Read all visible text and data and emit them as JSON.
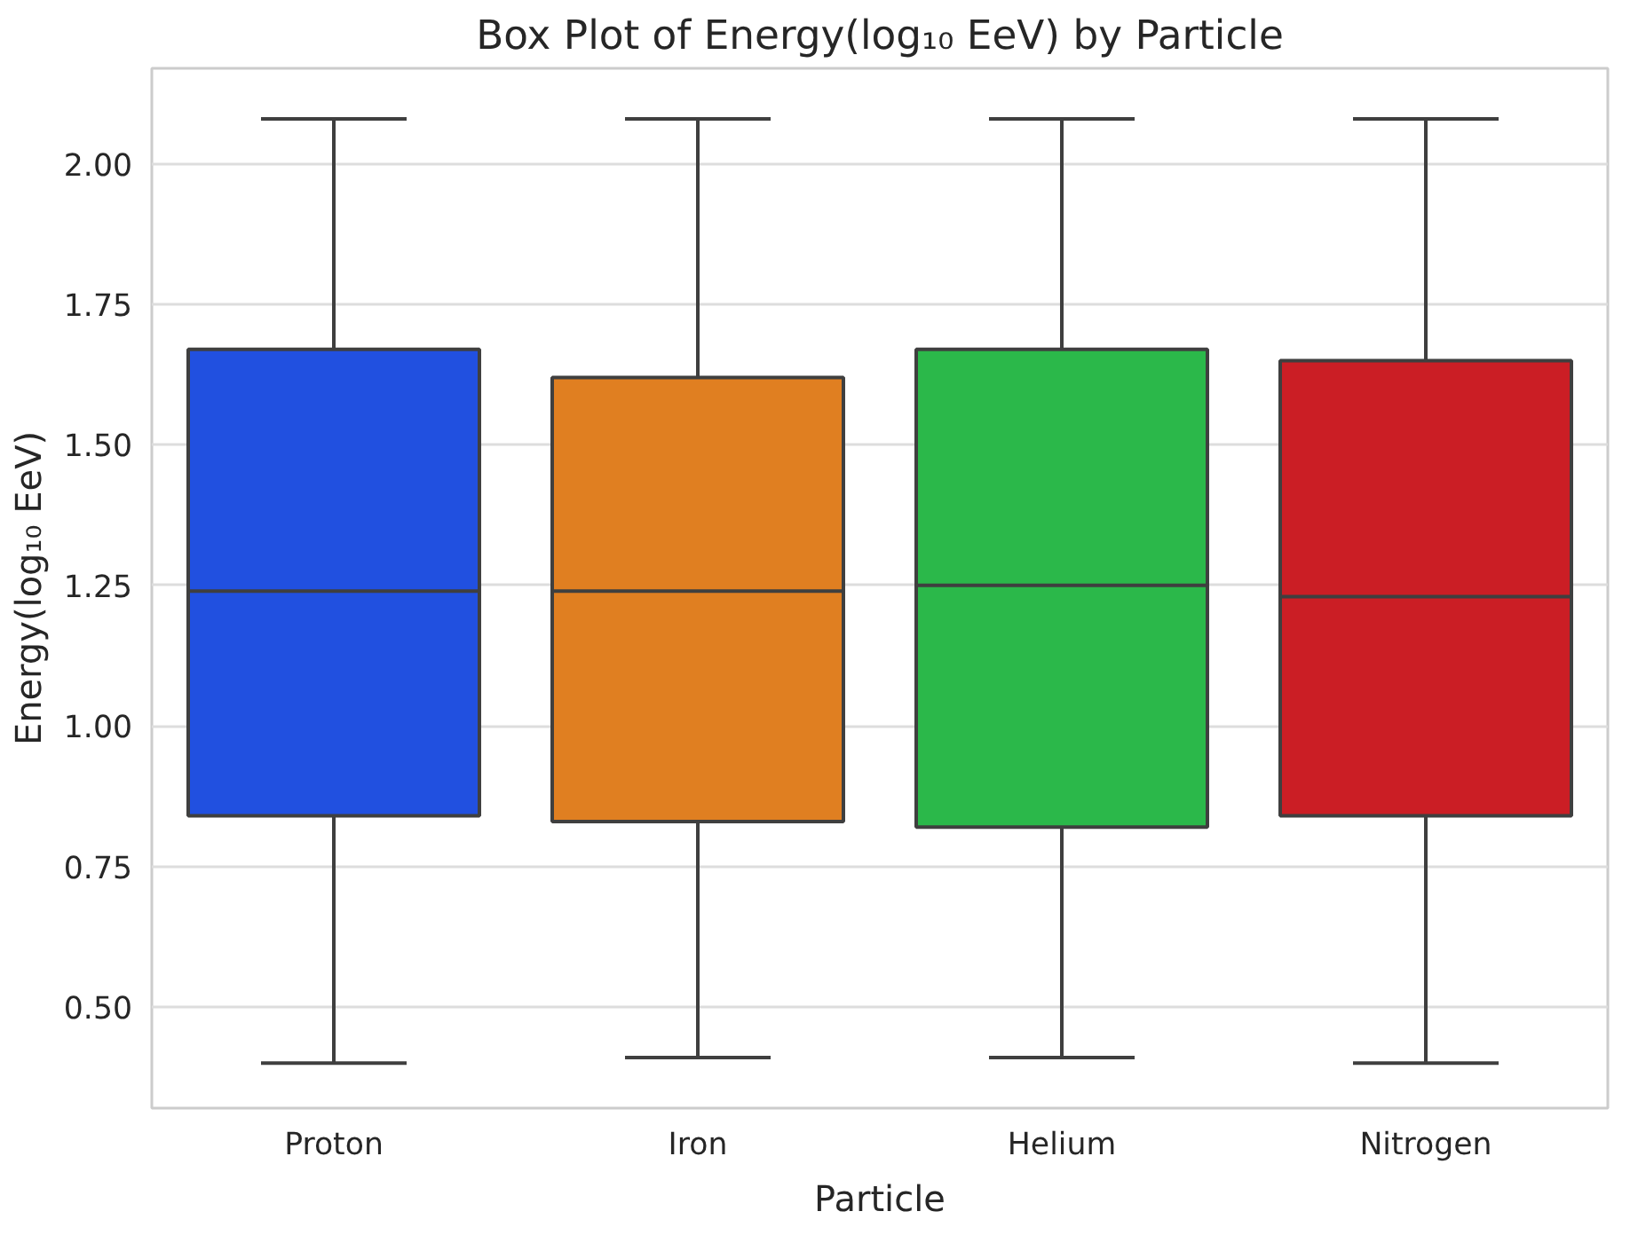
{
  "chart_data": {
    "type": "box",
    "title": "Box Plot of Energy(log₁₀ EeV) by Particle",
    "xlabel": "Particle",
    "ylabel": "Energy(log₁₀ EeV)",
    "categories": [
      "Proton",
      "Iron",
      "Helium",
      "Nitrogen"
    ],
    "colors": [
      "#2150e0",
      "#e07f21",
      "#2bb84a",
      "#cb1e25"
    ],
    "boxes": [
      {
        "low": 0.4,
        "q1": 0.84,
        "median": 1.24,
        "q3": 1.67,
        "high": 2.08
      },
      {
        "low": 0.41,
        "q1": 0.83,
        "median": 1.24,
        "q3": 1.62,
        "high": 2.08
      },
      {
        "low": 0.41,
        "q1": 0.82,
        "median": 1.25,
        "q3": 1.67,
        "high": 2.08
      },
      {
        "low": 0.4,
        "q1": 0.84,
        "median": 1.23,
        "q3": 1.65,
        "high": 2.08
      }
    ],
    "ylim": [
      0.32,
      2.17
    ],
    "yticks": [
      {
        "value": 0.5,
        "label": "0.50"
      },
      {
        "value": 0.75,
        "label": "0.75"
      },
      {
        "value": 1.0,
        "label": "1.00"
      },
      {
        "value": 1.25,
        "label": "1.25"
      },
      {
        "value": 1.5,
        "label": "1.50"
      },
      {
        "value": 1.75,
        "label": "1.75"
      },
      {
        "value": 2.0,
        "label": "2.00"
      }
    ],
    "grid": "y"
  }
}
